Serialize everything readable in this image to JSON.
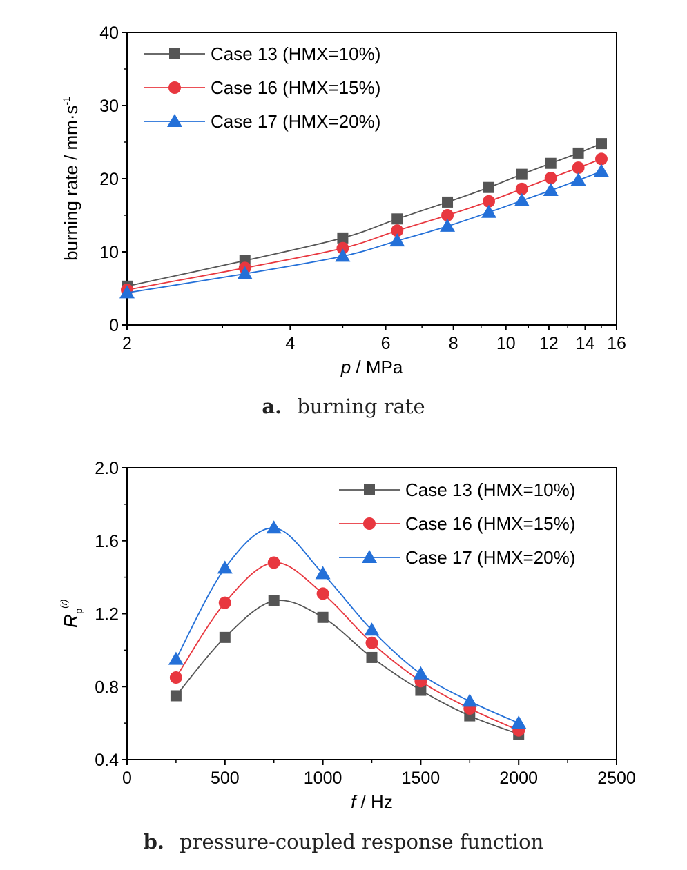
{
  "colors": {
    "case13": "#555555",
    "case16": "#e8373f",
    "case17": "#2470d8"
  },
  "captions": {
    "a_label": "a.",
    "a_text": "burning rate",
    "b_label": "b.",
    "b_text": "pressure-coupled response function"
  },
  "chart_data": [
    {
      "type": "line",
      "xscale": "log",
      "x_axis_label_var": "p",
      "x_axis_label_unit": " / MPa",
      "y_axis_label": "burning rate / mm·s",
      "y_axis_label_sup": "-1",
      "xlim": [
        2,
        16
      ],
      "ylim": [
        0,
        40
      ],
      "xticks": [
        "2",
        "4",
        "6",
        "8",
        "10",
        "12",
        "14",
        "16"
      ],
      "xtick_values": [
        2,
        4,
        6,
        8,
        10,
        12,
        14,
        16
      ],
      "yticks": [
        "0",
        "10",
        "20",
        "30",
        "40"
      ],
      "ytick_values": [
        0,
        10,
        20,
        30,
        40
      ],
      "legend_position": "top-left",
      "x": [
        2,
        3.3,
        5,
        6.3,
        7.8,
        9.3,
        10.7,
        12.1,
        13.6,
        15
      ],
      "series": [
        {
          "name": "Case 13 (HMX=10%)",
          "marker": "square",
          "color": "#555555",
          "values": [
            5.3,
            8.8,
            11.9,
            14.5,
            16.8,
            18.8,
            20.6,
            22.1,
            23.5,
            24.8
          ]
        },
        {
          "name": "Case 16 (HMX=15%)",
          "marker": "circle",
          "color": "#e8373f",
          "values": [
            4.8,
            7.8,
            10.5,
            12.9,
            15.0,
            16.9,
            18.6,
            20.1,
            21.5,
            22.7
          ]
        },
        {
          "name": "Case 17 (HMX=20%)",
          "marker": "triangle",
          "color": "#2470d8",
          "values": [
            4.4,
            7.0,
            9.4,
            11.5,
            13.5,
            15.4,
            17.0,
            18.4,
            19.8,
            21.0
          ]
        }
      ]
    },
    {
      "type": "line",
      "xscale": "linear",
      "x_axis_label_var": "f",
      "x_axis_label_unit": " / Hz",
      "y_axis_label_var": "R",
      "y_axis_label_sub": "p",
      "y_axis_label_sup": "(r)",
      "xlim": [
        0,
        2500
      ],
      "ylim": [
        0.4,
        2.0
      ],
      "xticks": [
        "0",
        "500",
        "1000",
        "1500",
        "2000",
        "2500"
      ],
      "xtick_values": [
        0,
        500,
        1000,
        1500,
        2000,
        2500
      ],
      "yticks": [
        "0.4",
        "0.8",
        "1.2",
        "1.6",
        "2.0"
      ],
      "ytick_values": [
        0.4,
        0.8,
        1.2,
        1.6,
        2.0
      ],
      "legend_position": "top-right",
      "x": [
        250,
        500,
        750,
        1000,
        1250,
        1500,
        1750,
        2000
      ],
      "series": [
        {
          "name": "Case 13 (HMX=10%)",
          "marker": "square",
          "color": "#555555",
          "values": [
            0.75,
            1.07,
            1.27,
            1.18,
            0.96,
            0.78,
            0.64,
            0.54
          ]
        },
        {
          "name": "Case 16 (HMX=15%)",
          "marker": "circle",
          "color": "#e8373f",
          "values": [
            0.85,
            1.26,
            1.48,
            1.31,
            1.04,
            0.83,
            0.68,
            0.56
          ]
        },
        {
          "name": "Case 17 (HMX=20%)",
          "marker": "triangle",
          "color": "#2470d8",
          "values": [
            0.95,
            1.45,
            1.67,
            1.42,
            1.11,
            0.87,
            0.72,
            0.6
          ]
        }
      ]
    }
  ]
}
